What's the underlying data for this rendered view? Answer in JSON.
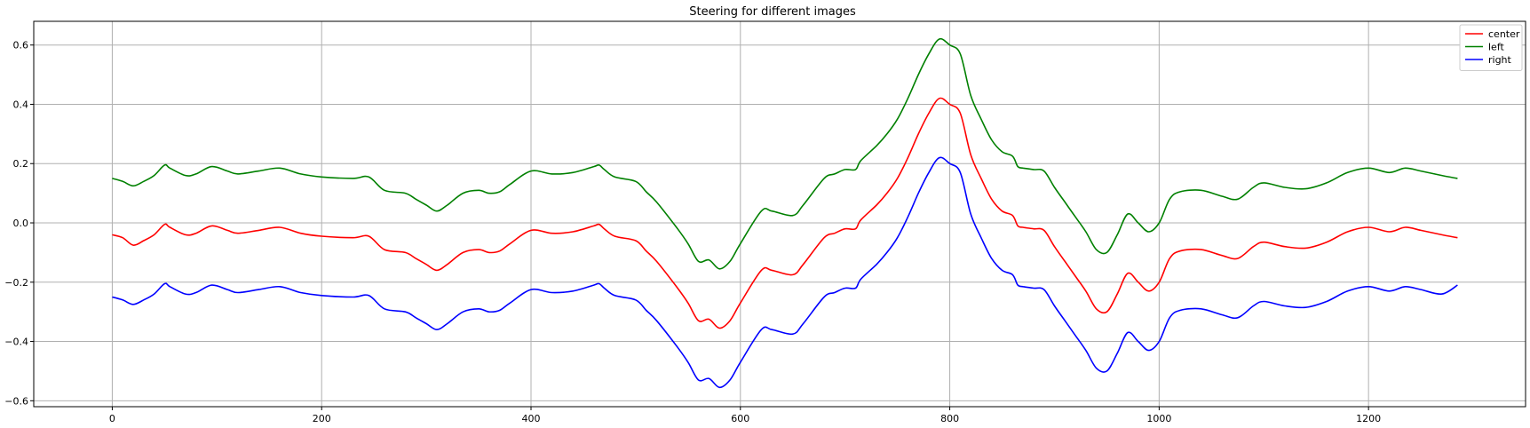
{
  "chart_data": {
    "type": "line",
    "title": "Steering for different images",
    "xlabel": "",
    "ylabel": "",
    "xlim": [
      -75,
      1350
    ],
    "ylim": [
      -0.62,
      0.68
    ],
    "xticks": [
      0,
      200,
      400,
      600,
      800,
      1000,
      1200
    ],
    "yticks": [
      -0.6,
      -0.4,
      -0.2,
      0.0,
      0.2,
      0.4,
      0.6
    ],
    "xtick_labels": [
      "0",
      "200",
      "400",
      "600",
      "800",
      "1000",
      "1200"
    ],
    "ytick_labels": [
      "−0.6",
      "−0.4",
      "−0.2",
      "0.0",
      "0.2",
      "0.4",
      "0.6"
    ],
    "grid": true,
    "legend_position": "top-right",
    "series": [
      {
        "name": "center",
        "color": "#ff0000",
        "x": [
          0,
          10,
          20,
          30,
          40,
          50,
          55,
          70,
          80,
          95,
          110,
          120,
          140,
          160,
          180,
          200,
          230,
          245,
          260,
          280,
          290,
          300,
          310,
          320,
          335,
          350,
          360,
          370,
          380,
          400,
          420,
          440,
          460,
          465,
          470,
          480,
          500,
          510,
          520,
          540,
          550,
          560,
          570,
          580,
          590,
          600,
          620,
          630,
          650,
          660,
          680,
          690,
          700,
          710,
          715,
          730,
          740,
          750,
          760,
          770,
          780,
          790,
          800,
          810,
          820,
          830,
          840,
          850,
          860,
          865,
          870,
          880,
          890,
          900,
          910,
          920,
          930,
          940,
          950,
          960,
          970,
          980,
          990,
          1000,
          1010,
          1020,
          1040,
          1060,
          1075,
          1090,
          1100,
          1120,
          1140,
          1160,
          1180,
          1200,
          1220,
          1235,
          1250,
          1270,
          1285
        ],
        "y": [
          -0.04,
          -0.05,
          -0.075,
          -0.06,
          -0.04,
          -0.005,
          -0.015,
          -0.04,
          -0.035,
          -0.01,
          -0.025,
          -0.035,
          -0.025,
          -0.015,
          -0.035,
          -0.045,
          -0.05,
          -0.045,
          -0.09,
          -0.1,
          -0.12,
          -0.14,
          -0.16,
          -0.14,
          -0.1,
          -0.09,
          -0.1,
          -0.095,
          -0.07,
          -0.025,
          -0.035,
          -0.03,
          -0.01,
          -0.005,
          -0.02,
          -0.045,
          -0.06,
          -0.095,
          -0.13,
          -0.22,
          -0.27,
          -0.33,
          -0.325,
          -0.355,
          -0.33,
          -0.27,
          -0.16,
          -0.16,
          -0.175,
          -0.14,
          -0.05,
          -0.035,
          -0.02,
          -0.02,
          0.01,
          0.06,
          0.1,
          0.15,
          0.22,
          0.3,
          0.37,
          0.42,
          0.4,
          0.37,
          0.23,
          0.15,
          0.08,
          0.04,
          0.025,
          -0.01,
          -0.015,
          -0.02,
          -0.025,
          -0.08,
          -0.13,
          -0.18,
          -0.23,
          -0.29,
          -0.3,
          -0.24,
          -0.17,
          -0.2,
          -0.23,
          -0.2,
          -0.12,
          -0.095,
          -0.09,
          -0.11,
          -0.12,
          -0.08,
          -0.065,
          -0.08,
          -0.085,
          -0.065,
          -0.03,
          -0.015,
          -0.03,
          -0.015,
          -0.025,
          -0.04,
          -0.05
        ]
      },
      {
        "name": "left",
        "color": "#008000",
        "x": [
          0,
          10,
          20,
          30,
          40,
          50,
          55,
          70,
          80,
          95,
          110,
          120,
          140,
          160,
          180,
          200,
          230,
          245,
          260,
          280,
          290,
          300,
          310,
          320,
          335,
          350,
          360,
          370,
          380,
          400,
          420,
          440,
          460,
          465,
          470,
          480,
          500,
          510,
          520,
          540,
          550,
          560,
          570,
          580,
          590,
          600,
          620,
          630,
          650,
          660,
          680,
          690,
          700,
          710,
          715,
          730,
          740,
          750,
          760,
          770,
          780,
          790,
          800,
          810,
          820,
          830,
          840,
          850,
          860,
          865,
          870,
          880,
          890,
          900,
          910,
          920,
          930,
          940,
          950,
          960,
          970,
          980,
          990,
          1000,
          1010,
          1020,
          1040,
          1060,
          1075,
          1090,
          1100,
          1120,
          1140,
          1160,
          1180,
          1200,
          1220,
          1235,
          1250,
          1270,
          1285
        ],
        "y": [
          0.15,
          0.14,
          0.125,
          0.14,
          0.16,
          0.195,
          0.185,
          0.16,
          0.165,
          0.19,
          0.175,
          0.165,
          0.175,
          0.185,
          0.165,
          0.155,
          0.15,
          0.155,
          0.11,
          0.1,
          0.08,
          0.06,
          0.04,
          0.06,
          0.1,
          0.11,
          0.1,
          0.105,
          0.13,
          0.175,
          0.165,
          0.17,
          0.19,
          0.195,
          0.18,
          0.155,
          0.14,
          0.105,
          0.07,
          -0.02,
          -0.07,
          -0.13,
          -0.125,
          -0.155,
          -0.13,
          -0.07,
          0.04,
          0.04,
          0.025,
          0.06,
          0.15,
          0.165,
          0.18,
          0.18,
          0.21,
          0.26,
          0.3,
          0.35,
          0.42,
          0.5,
          0.57,
          0.62,
          0.6,
          0.57,
          0.43,
          0.35,
          0.28,
          0.24,
          0.225,
          0.19,
          0.185,
          0.18,
          0.175,
          0.12,
          0.07,
          0.02,
          -0.03,
          -0.09,
          -0.1,
          -0.04,
          0.03,
          0.0,
          -0.03,
          0.0,
          0.08,
          0.105,
          0.11,
          0.09,
          0.08,
          0.12,
          0.135,
          0.12,
          0.115,
          0.135,
          0.17,
          0.185,
          0.17,
          0.185,
          0.175,
          0.16,
          0.15
        ]
      },
      {
        "name": "right",
        "color": "#0000ff",
        "x": [
          0,
          10,
          20,
          30,
          40,
          50,
          55,
          70,
          80,
          95,
          110,
          120,
          140,
          160,
          180,
          200,
          230,
          245,
          260,
          280,
          290,
          300,
          310,
          320,
          335,
          350,
          360,
          370,
          380,
          400,
          420,
          440,
          460,
          465,
          470,
          480,
          500,
          510,
          520,
          540,
          550,
          560,
          570,
          580,
          590,
          600,
          620,
          630,
          650,
          660,
          680,
          690,
          700,
          710,
          715,
          730,
          740,
          750,
          760,
          770,
          780,
          790,
          800,
          810,
          820,
          830,
          840,
          850,
          860,
          865,
          870,
          880,
          890,
          900,
          910,
          920,
          930,
          940,
          950,
          960,
          970,
          980,
          990,
          1000,
          1010,
          1020,
          1040,
          1060,
          1075,
          1090,
          1100,
          1120,
          1140,
          1160,
          1180,
          1200,
          1220,
          1235,
          1250,
          1270,
          1285
        ],
        "y": [
          -0.25,
          -0.26,
          -0.275,
          -0.26,
          -0.24,
          -0.205,
          -0.215,
          -0.24,
          -0.235,
          -0.21,
          -0.225,
          -0.235,
          -0.225,
          -0.215,
          -0.235,
          -0.245,
          -0.25,
          -0.245,
          -0.29,
          -0.3,
          -0.32,
          -0.34,
          -0.36,
          -0.34,
          -0.3,
          -0.29,
          -0.3,
          -0.295,
          -0.27,
          -0.225,
          -0.235,
          -0.23,
          -0.21,
          -0.205,
          -0.22,
          -0.245,
          -0.26,
          -0.295,
          -0.33,
          -0.42,
          -0.47,
          -0.53,
          -0.525,
          -0.555,
          -0.53,
          -0.47,
          -0.36,
          -0.36,
          -0.375,
          -0.34,
          -0.25,
          -0.235,
          -0.22,
          -0.22,
          -0.19,
          -0.14,
          -0.1,
          -0.05,
          0.02,
          0.1,
          0.17,
          0.22,
          0.2,
          0.17,
          0.03,
          -0.05,
          -0.12,
          -0.16,
          -0.175,
          -0.21,
          -0.215,
          -0.22,
          -0.225,
          -0.28,
          -0.33,
          -0.38,
          -0.43,
          -0.49,
          -0.5,
          -0.44,
          -0.37,
          -0.4,
          -0.43,
          -0.4,
          -0.32,
          -0.295,
          -0.29,
          -0.31,
          -0.32,
          -0.28,
          -0.265,
          -0.28,
          -0.285,
          -0.265,
          -0.23,
          -0.215,
          -0.23,
          -0.215,
          -0.225,
          -0.24,
          -0.21
        ]
      }
    ]
  }
}
